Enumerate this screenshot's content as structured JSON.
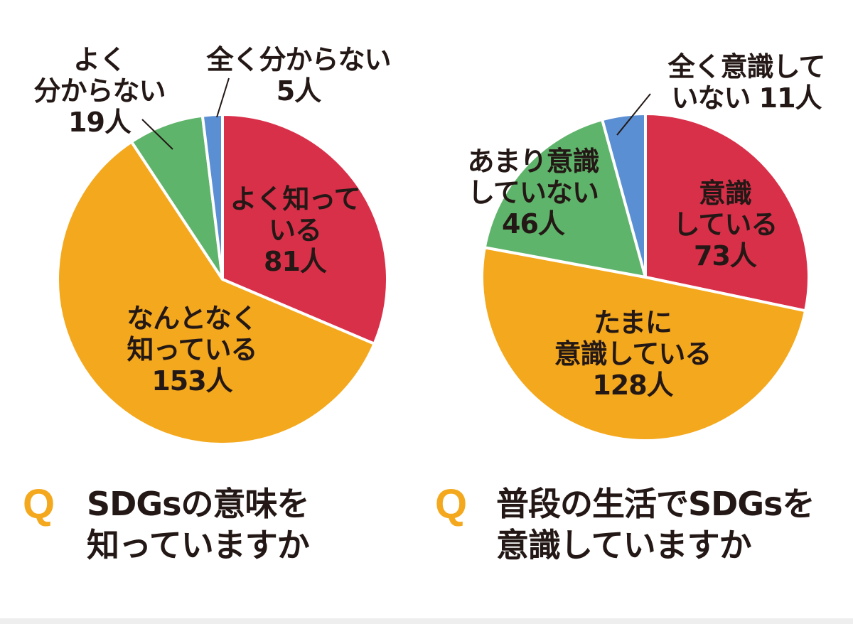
{
  "colors": {
    "red": "#d9304a",
    "orange": "#f4a81d",
    "green": "#5fb46b",
    "blue": "#5b8fd3",
    "text": "#231815"
  },
  "chart_data": [
    {
      "type": "pie",
      "title": "SDGsの意味を知っていますか",
      "unit": "人",
      "categories": [
        "よく知っている",
        "なんとなく知っている",
        "よく分からない",
        "全く分からない"
      ],
      "values": [
        81,
        153,
        19,
        5
      ],
      "labels": [
        "よく知って\nいる\n81人",
        "なんとなく\n知っている\n153人",
        "よく\n分からない\n19人",
        "全く分からない\n5人"
      ]
    },
    {
      "type": "pie",
      "title": "普段の生活でSDGsを意識していますか",
      "unit": "人",
      "categories": [
        "意識している",
        "たまに意識している",
        "あまり意識していない",
        "全く意識していない"
      ],
      "values": [
        73,
        128,
        46,
        11
      ],
      "labels": [
        "意識\nしている\n73人",
        "たまに\n意識している\n128人",
        "あまり意識\nしていない\n46人",
        "全く意識して\nいない 11人"
      ]
    }
  ],
  "questions": [
    {
      "mark": "Q",
      "text": "SDGsの意味を\n知っていますか"
    },
    {
      "mark": "Q",
      "text": "普段の生活でSDGsを\n意識していますか"
    }
  ]
}
